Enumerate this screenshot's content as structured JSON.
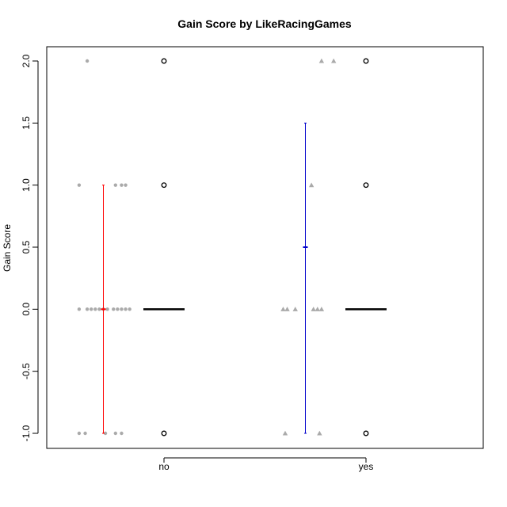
{
  "chart_data": {
    "type": "boxplot-with-strip",
    "title": "Gain Score by LikeRacingGames",
    "xlabel": "",
    "ylabel": "Gain Score",
    "categories": [
      "no",
      "yes"
    ],
    "ylim": [
      -1.1,
      2.1
    ],
    "yticks": [
      "-1.0",
      "-0.5",
      "0.0",
      "0.5",
      "1.0",
      "1.5",
      "2.0"
    ],
    "grid": false,
    "colors": {
      "no_interval": "#ff0000",
      "yes_interval": "#0000cc",
      "points": "#aaaaaa",
      "box": "#000000"
    },
    "groups": [
      {
        "category": "no",
        "point_shape": "circle",
        "points": [
          {
            "y": 2.0,
            "jitter": -0.38
          },
          {
            "y": 1.0,
            "jitter": -0.42
          },
          {
            "y": 1.0,
            "jitter": -0.24
          },
          {
            "y": 1.0,
            "jitter": -0.21
          },
          {
            "y": 1.0,
            "jitter": -0.19
          },
          {
            "y": 0.0,
            "jitter": -0.42
          },
          {
            "y": 0.0,
            "jitter": -0.38
          },
          {
            "y": 0.0,
            "jitter": -0.36
          },
          {
            "y": 0.0,
            "jitter": -0.34
          },
          {
            "y": 0.0,
            "jitter": -0.32
          },
          {
            "y": 0.0,
            "jitter": -0.3
          },
          {
            "y": 0.0,
            "jitter": -0.28
          },
          {
            "y": 0.0,
            "jitter": -0.25
          },
          {
            "y": 0.0,
            "jitter": -0.23
          },
          {
            "y": 0.0,
            "jitter": -0.21
          },
          {
            "y": 0.0,
            "jitter": -0.19
          },
          {
            "y": 0.0,
            "jitter": -0.17
          },
          {
            "y": -1.0,
            "jitter": -0.42
          },
          {
            "y": -1.0,
            "jitter": -0.39
          },
          {
            "y": -1.0,
            "jitter": -0.29
          },
          {
            "y": -1.0,
            "jitter": -0.24
          },
          {
            "y": -1.0,
            "jitter": -0.21
          }
        ],
        "interval": {
          "mean": 0.0,
          "low": -1.0,
          "high": 1.0,
          "offset": -0.3
        },
        "box": {
          "q1": 0.0,
          "median": 0.0,
          "q3": 0.0,
          "whisker_low": 0.0,
          "whisker_high": 0.0
        },
        "outliers": [
          2.0,
          1.0,
          -1.0
        ]
      },
      {
        "category": "yes",
        "point_shape": "triangle",
        "points": [
          {
            "y": 2.0,
            "jitter": -0.22
          },
          {
            "y": 2.0,
            "jitter": -0.16
          },
          {
            "y": 1.0,
            "jitter": -0.27
          },
          {
            "y": 0.0,
            "jitter": -0.41
          },
          {
            "y": 0.0,
            "jitter": -0.39
          },
          {
            "y": 0.0,
            "jitter": -0.35
          },
          {
            "y": 0.0,
            "jitter": -0.26
          },
          {
            "y": 0.0,
            "jitter": -0.24
          },
          {
            "y": 0.0,
            "jitter": -0.22
          },
          {
            "y": -1.0,
            "jitter": -0.4
          },
          {
            "y": -1.0,
            "jitter": -0.23
          }
        ],
        "interval": {
          "mean": 0.5,
          "low": -1.0,
          "high": 1.5,
          "offset": -0.3
        },
        "box": {
          "q1": 0.0,
          "median": 0.0,
          "q3": 0.0,
          "whisker_low": 0.0,
          "whisker_high": 0.0
        },
        "outliers": [
          2.0,
          1.0,
          -1.0
        ]
      }
    ]
  }
}
